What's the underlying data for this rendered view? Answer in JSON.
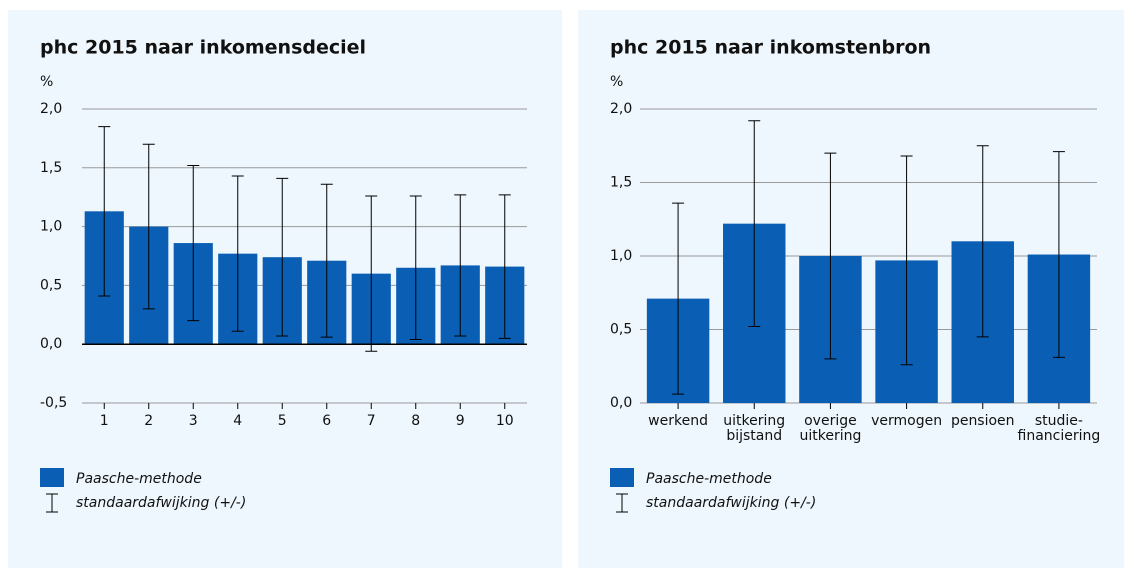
{
  "chart_data": [
    {
      "type": "bar",
      "title": "phc 2015 naar inkomensdeciel",
      "y_label": "%",
      "categories": [
        [
          "1"
        ],
        [
          "2"
        ],
        [
          "3"
        ],
        [
          "4"
        ],
        [
          "5"
        ],
        [
          "6"
        ],
        [
          "7"
        ],
        [
          "8"
        ],
        [
          "9"
        ],
        [
          "10"
        ]
      ],
      "series": [
        {
          "name": "Paasche-methode",
          "color": "#0a5fb4",
          "values": [
            1.13,
            1.0,
            0.86,
            0.77,
            0.74,
            0.71,
            0.6,
            0.65,
            0.67,
            0.66
          ],
          "errors": [
            0.72,
            0.7,
            0.66,
            0.66,
            0.67,
            0.65,
            0.66,
            0.61,
            0.6,
            0.61
          ]
        }
      ],
      "error_label": "standaardafwijking (+/-)",
      "ylim": [
        -0.5,
        2.0
      ],
      "yticks": [
        {
          "value": -0.5,
          "label": "-0,5"
        },
        {
          "value": 0,
          "label": "0,0"
        },
        {
          "value": 0.5,
          "label": "0,5"
        },
        {
          "value": 1.0,
          "label": "1,0"
        },
        {
          "value": 1.5,
          "label": "1,5"
        },
        {
          "value": 2.0,
          "label": "2,0"
        }
      ],
      "grid": true
    },
    {
      "type": "bar",
      "title": "phc 2015 naar inkomstenbron",
      "y_label": "%",
      "categories": [
        [
          "werkend"
        ],
        [
          "uitkering",
          "bijstand"
        ],
        [
          "overige",
          "uitkering"
        ],
        [
          "vermogen"
        ],
        [
          "pensioen"
        ],
        [
          "studie-",
          "financiering"
        ]
      ],
      "series": [
        {
          "name": "Paasche-methode",
          "color": "#0a5fb4",
          "values": [
            0.71,
            1.22,
            1.0,
            0.97,
            1.1,
            1.01
          ],
          "errors": [
            0.65,
            0.7,
            0.7,
            0.71,
            0.65,
            0.7
          ]
        }
      ],
      "error_label": "standaardafwijking (+/-)",
      "ylim": [
        0,
        2.0
      ],
      "yticks": [
        {
          "value": 0,
          "label": "0,0"
        },
        {
          "value": 0.5,
          "label": "0,5"
        },
        {
          "value": 1.0,
          "label": "1,0"
        },
        {
          "value": 1.5,
          "label": "1,5"
        },
        {
          "value": 2.0,
          "label": "2,0"
        }
      ],
      "grid": true
    }
  ]
}
